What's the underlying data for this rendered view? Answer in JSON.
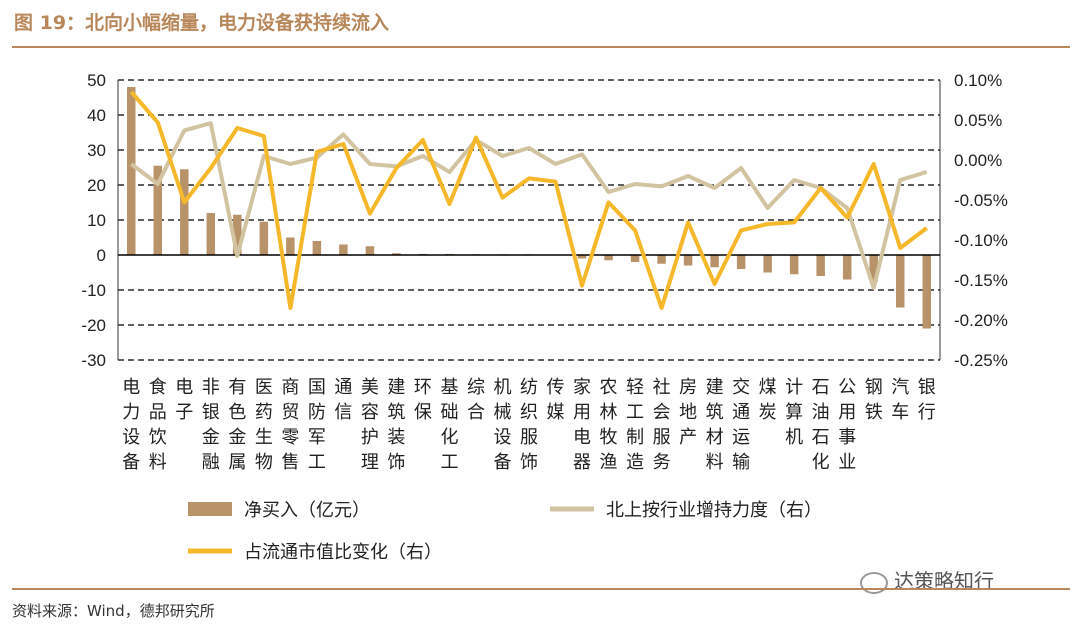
{
  "figure": {
    "title": "图 19：北向小幅缩量，电力设备获持续流入",
    "source": "资料来源：Wind，德邦研究所",
    "watermark": "达策略知行"
  },
  "colors": {
    "bar": "#b8936a",
    "gray_line": "#d2c4a0",
    "orange_line": "#f5b82a",
    "accent": "#b8875a"
  },
  "chart_data": {
    "type": "bar+line",
    "categories": [
      "电力设备",
      "食品饮料",
      "电子",
      "非银金融",
      "有色金属",
      "医药生物",
      "商贸零售",
      "国防军工",
      "通信",
      "美容护理",
      "建筑装饰",
      "环保",
      "基础化工",
      "综合",
      "机械设备",
      "纺织服饰",
      "传媒",
      "家用电器",
      "农林牧渔",
      "轻工制造",
      "社会服务",
      "房地产",
      "建筑材料",
      "交通运输",
      "煤炭",
      "计算机",
      "石油石化",
      "公用事业",
      "钢铁",
      "汽车",
      "银行"
    ],
    "left_axis": {
      "min": -30,
      "max": 50,
      "step": 10,
      "ticks": [
        "50",
        "40",
        "30",
        "20",
        "10",
        "0",
        "-10",
        "-20",
        "-30"
      ]
    },
    "right_axis": {
      "min": -0.25,
      "max": 0.1,
      "step": 0.05,
      "unit": "%",
      "ticks": [
        "0.10%",
        "0.05%",
        "0.00%",
        "-0.05%",
        "-0.10%",
        "-0.15%",
        "-0.20%",
        "-0.25%"
      ]
    },
    "series": [
      {
        "name": "净买入（亿元）",
        "type": "bar",
        "axis": "left",
        "values": [
          48,
          25.5,
          24.5,
          12,
          11.5,
          9.5,
          5,
          4,
          3,
          2.5,
          0.5,
          0.3,
          0.3,
          0.2,
          0.2,
          0.2,
          0,
          -1,
          -1.5,
          -2,
          -2.5,
          -3,
          -3.5,
          -4,
          -5,
          -5.5,
          -6,
          -7,
          -7.5,
          -15,
          -21
        ]
      },
      {
        "name": "北上按行业增持力度（右）",
        "type": "line",
        "axis": "right",
        "values": [
          -0.005,
          -0.03,
          0.037,
          0.046,
          -0.12,
          0.005,
          -0.005,
          0.003,
          0.032,
          -0.005,
          -0.008,
          0.005,
          -0.015,
          0.025,
          0.005,
          0.015,
          -0.005,
          0.007,
          -0.04,
          -0.03,
          -0.033,
          -0.02,
          -0.035,
          -0.01,
          -0.06,
          -0.025,
          -0.035,
          -0.06,
          -0.16,
          -0.025,
          -0.015
        ]
      },
      {
        "name": "占流通市值比变化（右）",
        "type": "line",
        "axis": "right",
        "values": [
          0.085,
          0.047,
          -0.053,
          -0.01,
          0.04,
          0.03,
          -0.185,
          0.01,
          0.02,
          -0.067,
          -0.01,
          0.025,
          -0.055,
          0.028,
          -0.047,
          -0.023,
          -0.027,
          -0.157,
          -0.053,
          -0.088,
          -0.185,
          -0.078,
          -0.155,
          -0.088,
          -0.08,
          -0.078,
          -0.035,
          -0.072,
          -0.005,
          -0.11,
          -0.085
        ]
      }
    ]
  }
}
